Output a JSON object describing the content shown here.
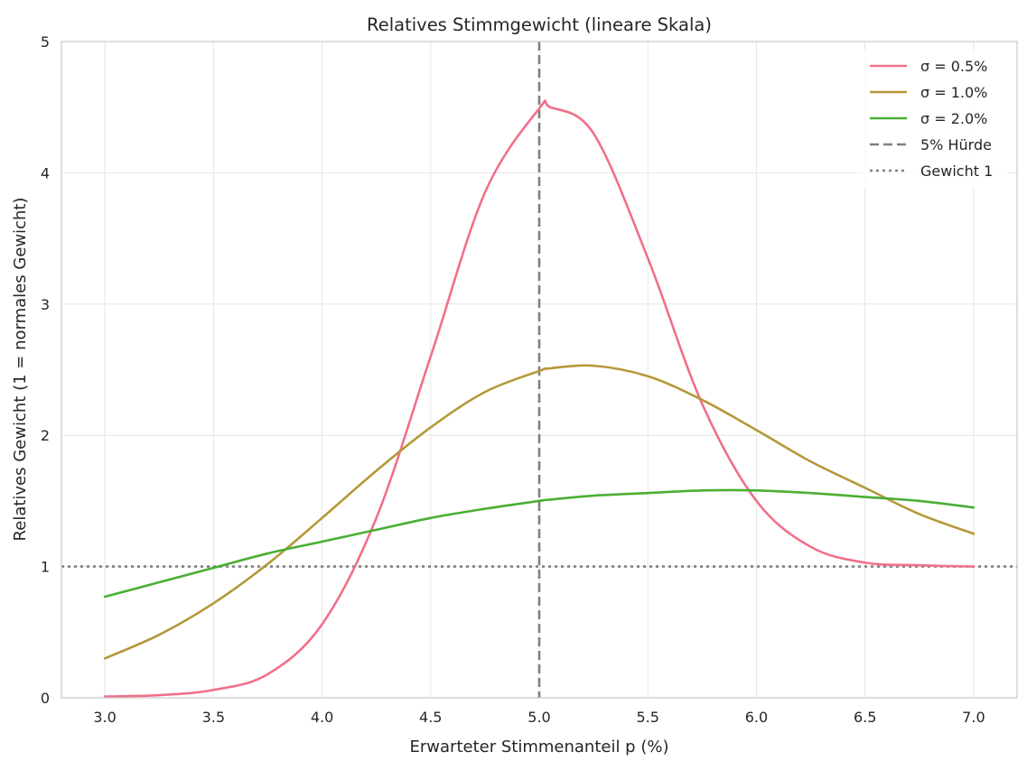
{
  "chart_data": {
    "type": "line",
    "title": "Relatives Stimmgewicht (lineare Skala)",
    "xlabel": "Erwarteter Stimmenanteil p (%)",
    "ylabel": "Relatives Gewicht (1 = normales Gewicht)",
    "xlim": [
      2.8,
      7.2
    ],
    "ylim": [
      0,
      5
    ],
    "xticks": [
      3.0,
      3.5,
      4.0,
      4.5,
      5.0,
      5.5,
      6.0,
      6.5,
      7.0
    ],
    "xtick_labels": [
      "3.0",
      "3.5",
      "4.0",
      "4.5",
      "5.0",
      "5.5",
      "6.0",
      "6.5",
      "7.0"
    ],
    "yticks": [
      0,
      1,
      2,
      3,
      4,
      5
    ],
    "ytick_labels": [
      "0",
      "1",
      "2",
      "3",
      "4",
      "5"
    ],
    "grid": true,
    "legend_position": "top-right",
    "x": [
      3.0,
      3.25,
      3.5,
      3.75,
      4.0,
      4.25,
      4.5,
      4.75,
      5.0,
      5.05,
      5.25,
      5.5,
      5.75,
      6.0,
      6.25,
      6.5,
      6.75,
      7.0
    ],
    "series": [
      {
        "name": "σ = 0.5%",
        "color": "#f0708a",
        "values": [
          0.01,
          0.02,
          0.06,
          0.18,
          0.56,
          1.37,
          2.6,
          3.85,
          4.49,
          4.5,
          4.3,
          3.35,
          2.24,
          1.5,
          1.15,
          1.03,
          1.01,
          1.0
        ]
      },
      {
        "name": "σ = 1.0%",
        "color": "#b5983a",
        "values": [
          0.3,
          0.48,
          0.72,
          1.02,
          1.37,
          1.73,
          2.06,
          2.33,
          2.49,
          2.51,
          2.53,
          2.45,
          2.27,
          2.04,
          1.8,
          1.6,
          1.4,
          1.25
        ]
      },
      {
        "name": "σ = 2.0%",
        "color": "#4aae34",
        "values": [
          0.77,
          0.88,
          0.99,
          1.1,
          1.19,
          1.28,
          1.37,
          1.44,
          1.5,
          1.51,
          1.54,
          1.56,
          1.58,
          1.58,
          1.56,
          1.53,
          1.5,
          1.45
        ]
      }
    ],
    "reference_lines": [
      {
        "name": "5% Hürde",
        "orientation": "vertical",
        "value": 5.0,
        "style": "dashed",
        "color": "#808080"
      },
      {
        "name": "Gewicht 1",
        "orientation": "horizontal",
        "value": 1.0,
        "style": "dotted",
        "color": "#808080"
      }
    ]
  }
}
